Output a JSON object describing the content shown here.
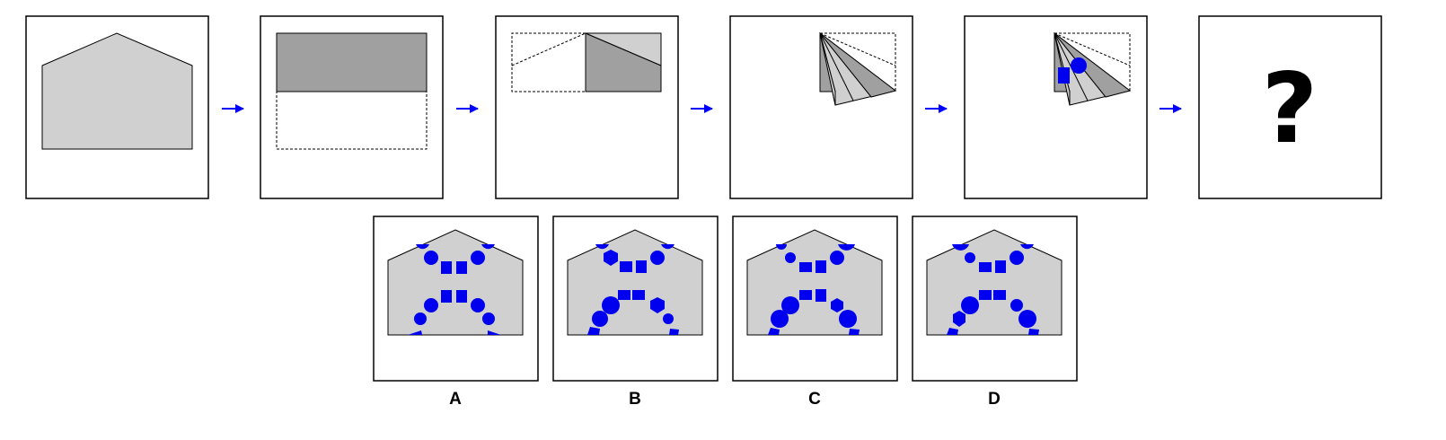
{
  "question_mark": "?",
  "options": [
    {
      "label": "A"
    },
    {
      "label": "B"
    },
    {
      "label": "C"
    },
    {
      "label": "D"
    }
  ],
  "colors": {
    "paper": "#d0d0d0",
    "paper_dark": "#a0a0a0",
    "hole": "#0000ee",
    "arrow": "#0000ff",
    "frame": "#000000"
  }
}
